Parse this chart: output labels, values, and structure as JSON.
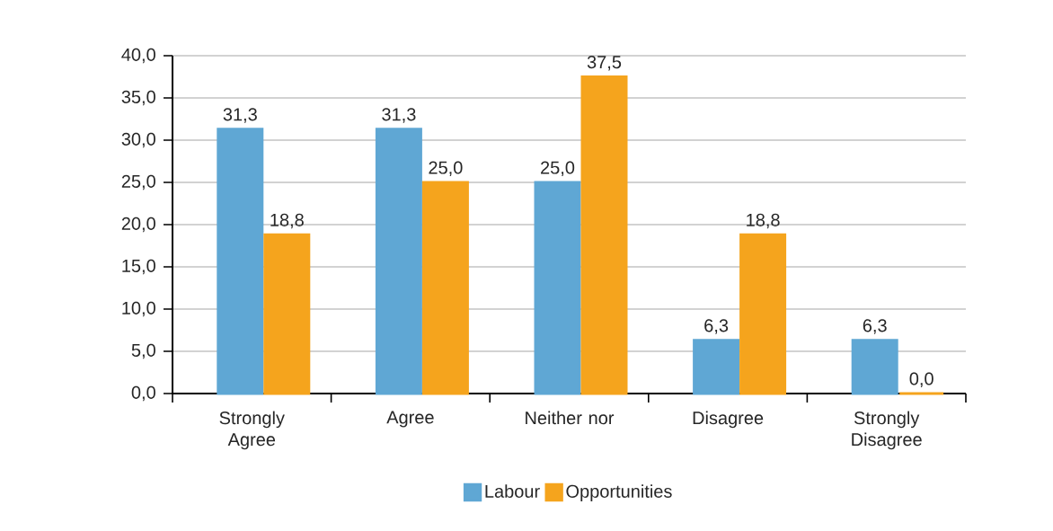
{
  "chart_data": {
    "type": "bar",
    "categories": [
      "Strongly Agree",
      "Agree",
      "Neither nor",
      "Disagree",
      "Strongly Disagree"
    ],
    "series": [
      {
        "name": "Labour",
        "color": "#5fa7d4",
        "values": [
          31.3,
          31.3,
          25.0,
          6.3,
          6.3
        ],
        "value_labels": [
          "31,3",
          "31,3",
          "25,0",
          "6,3",
          "6,3"
        ]
      },
      {
        "name": "Opportunities",
        "color": "#f5a41d",
        "values": [
          18.8,
          25.0,
          37.5,
          18.8,
          0.0
        ],
        "value_labels": [
          "18,8",
          "25,0",
          "37,5",
          "18,8",
          "0,0"
        ]
      }
    ],
    "ylim": [
      0,
      40
    ],
    "yticks": [
      {
        "value": 0,
        "label": "0,0"
      },
      {
        "value": 5,
        "label": "5,0"
      },
      {
        "value": 10,
        "label": "10,0"
      },
      {
        "value": 15,
        "label": "15,0"
      },
      {
        "value": 20,
        "label": "20,0"
      },
      {
        "value": 25,
        "label": "25,0"
      },
      {
        "value": 30,
        "label": "30,0"
      },
      {
        "value": 35,
        "label": "35,0"
      },
      {
        "value": 40,
        "label": "40,0"
      }
    ],
    "grid": "y",
    "legend": "bottom"
  }
}
